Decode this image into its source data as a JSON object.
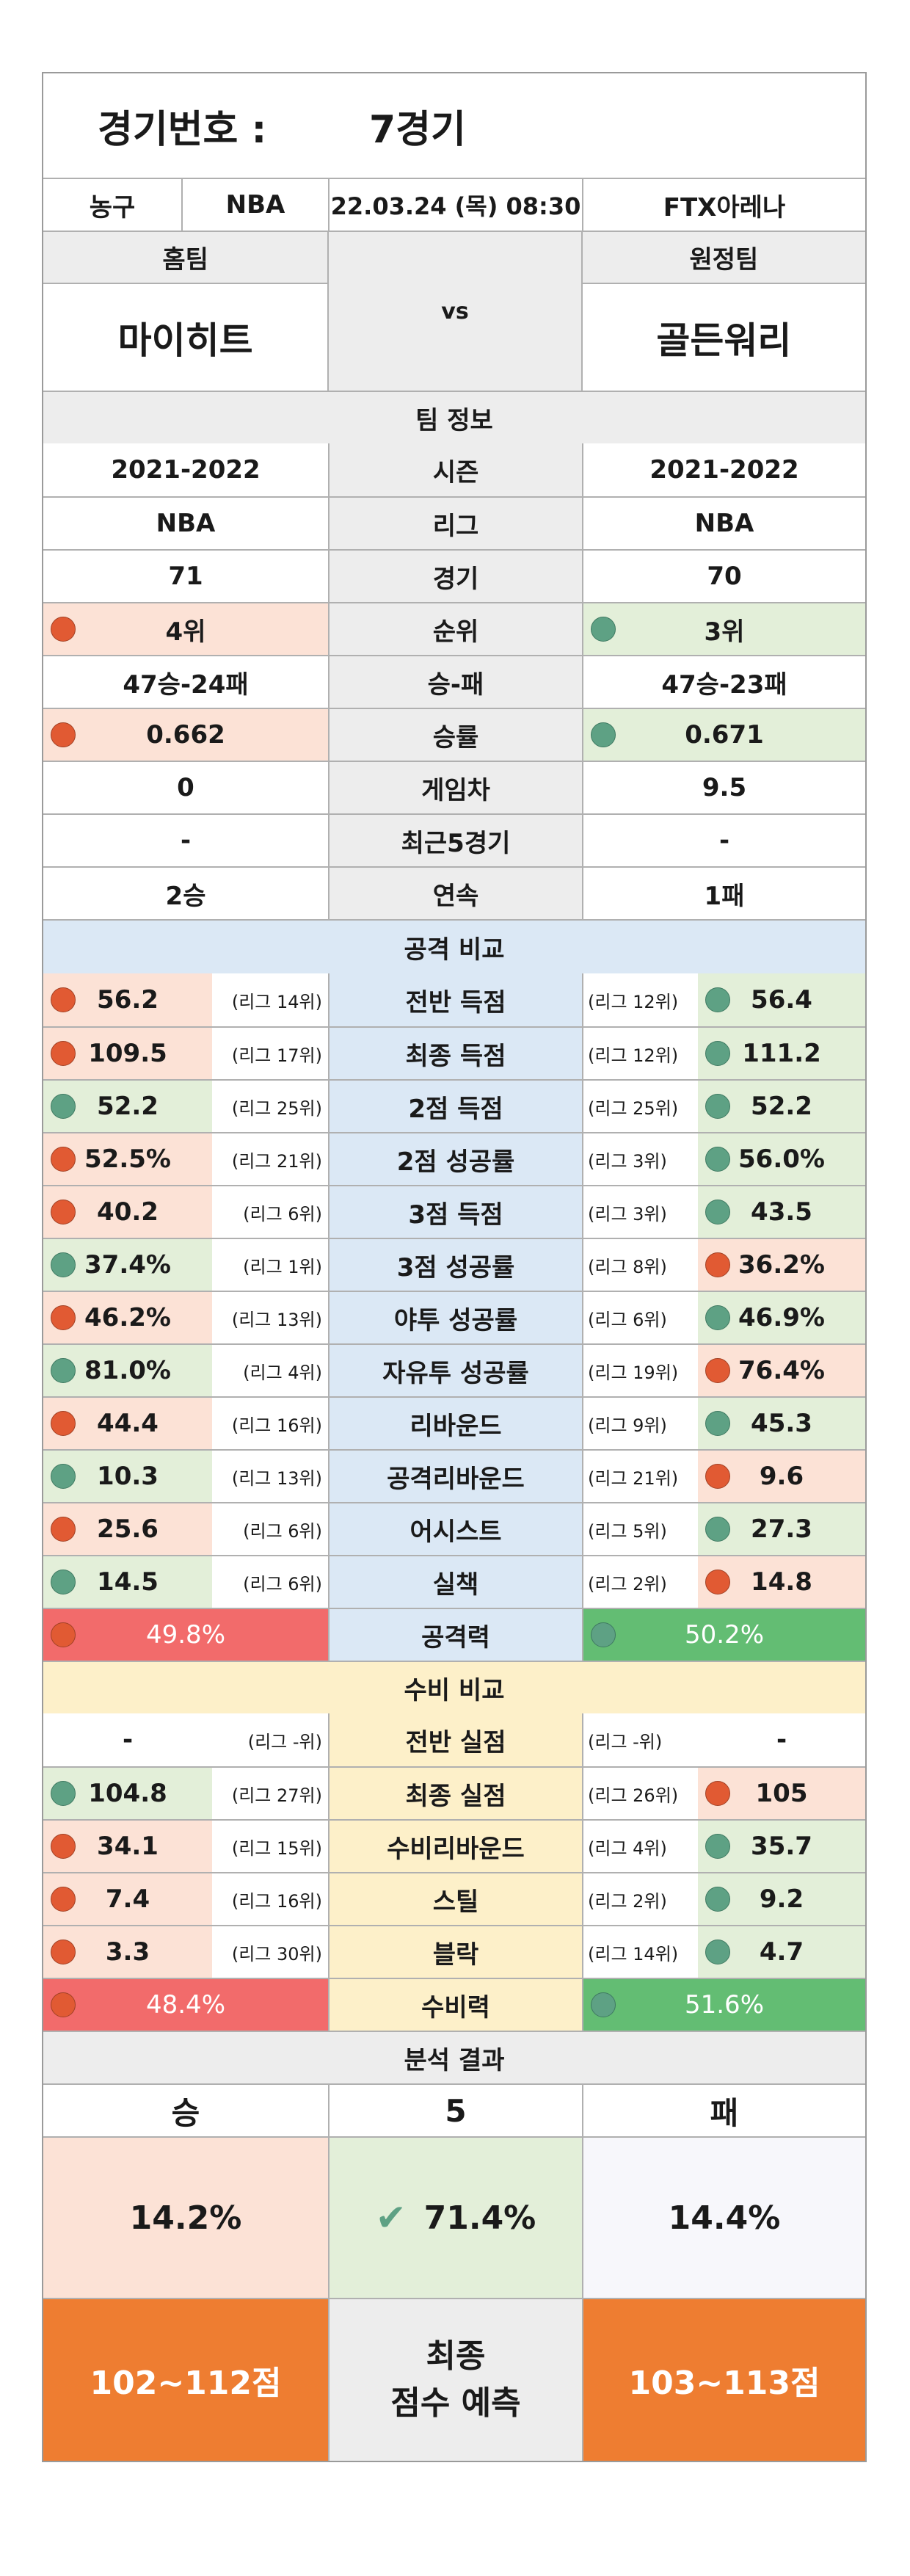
{
  "header": {
    "label": "경기번호 :",
    "game": "7경기"
  },
  "info": {
    "sport": "농구",
    "league": "NBA",
    "datetime": "22.03.24 (목) 08:30",
    "venue": "FTX아레나"
  },
  "teams": {
    "home_label": "홈팀",
    "away_label": "원정팀",
    "home": "마이히트",
    "away": "골든워리",
    "vs": "vs"
  },
  "team_info": {
    "title": "팀 정보",
    "rows": [
      {
        "label": "시즌",
        "home": "2021-2022",
        "away": "2021-2022"
      },
      {
        "label": "리그",
        "home": "NBA",
        "away": "NBA"
      },
      {
        "label": "경기",
        "home": "71",
        "away": "70"
      },
      {
        "label": "순위",
        "home": "4위",
        "away": "3위",
        "home_dot": "red",
        "away_dot": "teal"
      },
      {
        "label": "승-패",
        "home": "47승-24패",
        "away": "47승-23패"
      },
      {
        "label": "승률",
        "home": "0.662",
        "away": "0.671",
        "home_dot": "red",
        "away_dot": "teal"
      },
      {
        "label": "게임차",
        "home": "0",
        "away": "9.5"
      },
      {
        "label": "최근5경기",
        "home": "-",
        "away": "-"
      },
      {
        "label": "연속",
        "home": "2승",
        "away": "1패"
      }
    ]
  },
  "attack": {
    "title": "공격 비교",
    "rows": [
      {
        "label": "전반 득점",
        "home": "56.2",
        "home_rank": "(리그 14위)",
        "away_rank": "(리그 12위)",
        "away": "56.4",
        "home_color": "red",
        "away_color": "teal"
      },
      {
        "label": "최종 득점",
        "home": "109.5",
        "home_rank": "(리그 17위)",
        "away_rank": "(리그 12위)",
        "away": "111.2",
        "home_color": "red",
        "away_color": "teal"
      },
      {
        "label": "2점 득점",
        "home": "52.2",
        "home_rank": "(리그 25위)",
        "away_rank": "(리그 25위)",
        "away": "52.2",
        "home_color": "teal",
        "away_color": "teal"
      },
      {
        "label": "2점 성공률",
        "home": "52.5%",
        "home_rank": "(리그 21위)",
        "away_rank": "(리그 3위)",
        "away": "56.0%",
        "home_color": "red",
        "away_color": "teal"
      },
      {
        "label": "3점 득점",
        "home": "40.2",
        "home_rank": "(리그 6위)",
        "away_rank": "(리그 3위)",
        "away": "43.5",
        "home_color": "red",
        "away_color": "teal"
      },
      {
        "label": "3점 성공률",
        "home": "37.4%",
        "home_rank": "(리그 1위)",
        "away_rank": "(리그 8위)",
        "away": "36.2%",
        "home_color": "teal",
        "away_color": "red"
      },
      {
        "label": "야투 성공률",
        "home": "46.2%",
        "home_rank": "(리그 13위)",
        "away_rank": "(리그 6위)",
        "away": "46.9%",
        "home_color": "red",
        "away_color": "teal"
      },
      {
        "label": "자유투 성공률",
        "home": "81.0%",
        "home_rank": "(리그 4위)",
        "away_rank": "(리그 19위)",
        "away": "76.4%",
        "home_color": "teal",
        "away_color": "red"
      },
      {
        "label": "리바운드",
        "home": "44.4",
        "home_rank": "(리그 16위)",
        "away_rank": "(리그 9위)",
        "away": "45.3",
        "home_color": "red",
        "away_color": "teal"
      },
      {
        "label": "공격리바운드",
        "home": "10.3",
        "home_rank": "(리그 13위)",
        "away_rank": "(리그 21위)",
        "away": "9.6",
        "home_color": "teal",
        "away_color": "red"
      },
      {
        "label": "어시스트",
        "home": "25.6",
        "home_rank": "(리그 6위)",
        "away_rank": "(리그 5위)",
        "away": "27.3",
        "home_color": "red",
        "away_color": "teal"
      },
      {
        "label": "실책",
        "home": "14.5",
        "home_rank": "(리그 6위)",
        "away_rank": "(리그 2위)",
        "away": "14.8",
        "home_color": "teal",
        "away_color": "red"
      }
    ],
    "power": {
      "label": "공격력",
      "home": "49.8%",
      "away": "50.2%"
    }
  },
  "defense": {
    "title": "수비 비교",
    "rows": [
      {
        "label": "전반 실점",
        "home": "-",
        "home_rank": "(리그 -위)",
        "away_rank": "(리그 -위)",
        "away": "-",
        "home_color": "none",
        "away_color": "none"
      },
      {
        "label": "최종 실점",
        "home": "104.8",
        "home_rank": "(리그 27위)",
        "away_rank": "(리그 26위)",
        "away": "105",
        "home_color": "teal",
        "away_color": "red"
      },
      {
        "label": "수비리바운드",
        "home": "34.1",
        "home_rank": "(리그 15위)",
        "away_rank": "(리그 4위)",
        "away": "35.7",
        "home_color": "red",
        "away_color": "teal"
      },
      {
        "label": "스틸",
        "home": "7.4",
        "home_rank": "(리그 16위)",
        "away_rank": "(리그 2위)",
        "away": "9.2",
        "home_color": "red",
        "away_color": "teal"
      },
      {
        "label": "블락",
        "home": "3.3",
        "home_rank": "(리그 30위)",
        "away_rank": "(리그 14위)",
        "away": "4.7",
        "home_color": "red",
        "away_color": "teal"
      }
    ],
    "power": {
      "label": "수비력",
      "home": "48.4%",
      "away": "51.6%"
    }
  },
  "result": {
    "title": "분석 결과",
    "win_label": "승",
    "draw_label": "5",
    "lose_label": "패",
    "win_pct": "14.2%",
    "draw_pct": "71.4%",
    "lose_pct": "14.4%",
    "home_score": "102~112점",
    "away_score": "103~113점",
    "predict_line1": "최종",
    "predict_line2": "점수 예측"
  },
  "colors": {
    "accent_orange": "#ee7d31",
    "red_bar": "#f26b6b",
    "green_bar": "#63bd73"
  }
}
